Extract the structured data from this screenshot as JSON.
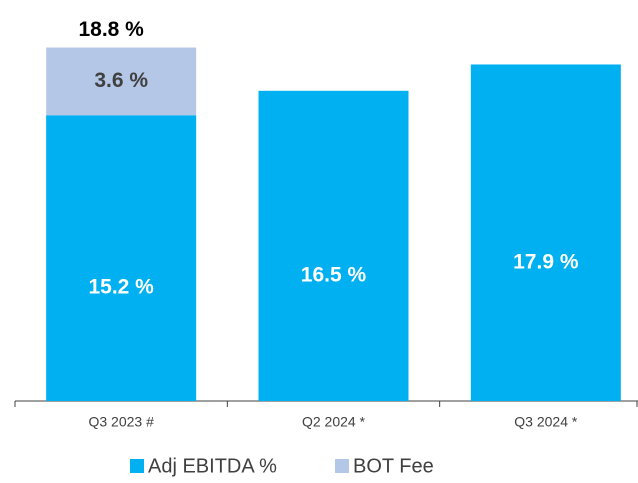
{
  "chart_data": {
    "type": "bar",
    "stacked": true,
    "categories": [
      "Q3 2023 #",
      "Q2 2024 *",
      "Q3 2024 *"
    ],
    "series": [
      {
        "name": "Adj EBITDA %",
        "color": "#00b0f0",
        "label_color": "#ffffff",
        "values": [
          15.2,
          16.5,
          17.9
        ],
        "value_labels": [
          "15.2 %",
          "16.5 %",
          "17.9 %"
        ]
      },
      {
        "name": "BOT Fee",
        "color": "#b4c7e7",
        "label_color": "#404040",
        "values": [
          3.6,
          null,
          null
        ],
        "value_labels": [
          "3.6 %",
          null,
          null
        ]
      }
    ],
    "totals": [
      18.8,
      null,
      null
    ],
    "total_labels": [
      "18.8 %",
      null,
      null
    ],
    "ylim": [
      0,
      20
    ],
    "yticks": [],
    "grid": false,
    "legend": "bottom"
  }
}
